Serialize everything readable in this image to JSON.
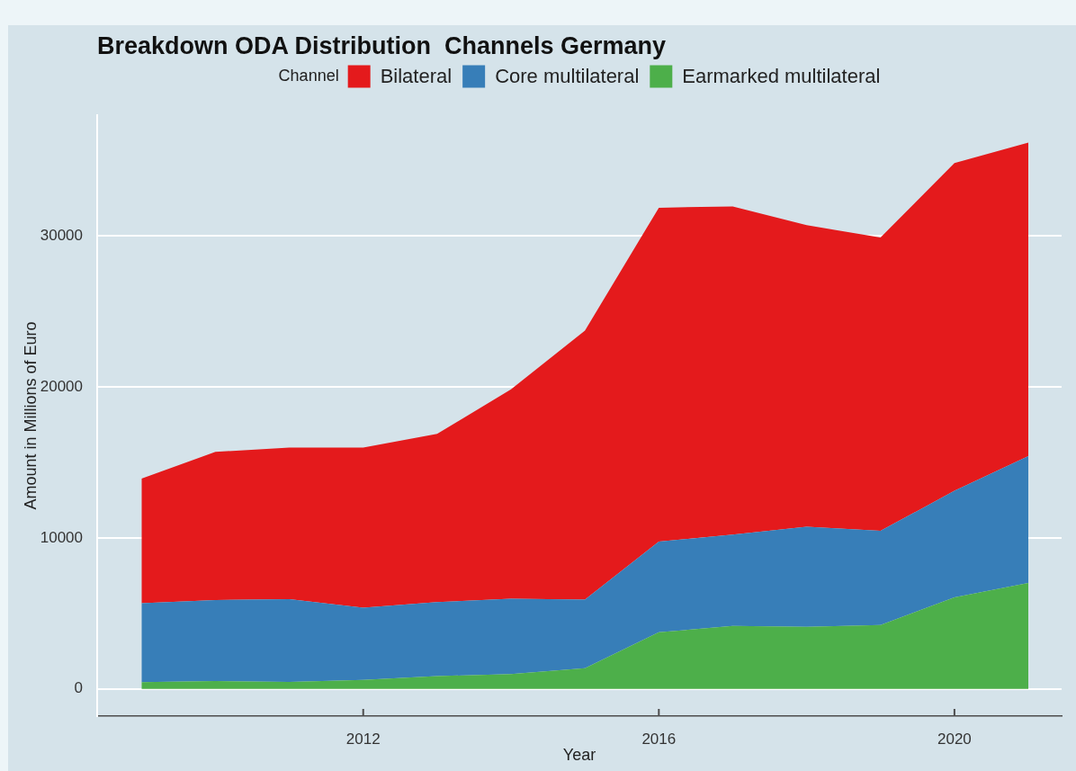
{
  "chart_data": {
    "type": "area",
    "title": "Breakdown ODA Distribution  Channels Germany",
    "xlabel": "Year",
    "ylabel": "Amount in Millions of Euro",
    "legend_title": "Channel",
    "x": [
      2009,
      2010,
      2011,
      2012,
      2013,
      2014,
      2015,
      2016,
      2017,
      2018,
      2019,
      2020,
      2021
    ],
    "series": [
      {
        "name": "Earmarked multilateral",
        "color": "#4daf4a",
        "values": [
          450,
          520,
          460,
          600,
          850,
          990,
          1370,
          3750,
          4170,
          4110,
          4240,
          6070,
          7020
        ]
      },
      {
        "name": "Core multilateral",
        "color": "#377eb8",
        "values": [
          5220,
          5370,
          5490,
          4780,
          4900,
          4980,
          4550,
          6010,
          6050,
          6630,
          6230,
          7050,
          8400
        ]
      },
      {
        "name": "Bilateral",
        "color": "#e41a1c",
        "values": [
          8260,
          9810,
          10040,
          10600,
          11140,
          13880,
          17810,
          22110,
          21740,
          19970,
          19430,
          21700,
          20770
        ]
      }
    ],
    "stacked": true,
    "xlim": [
      2008.4,
      2021.45
    ],
    "ylim": [
      -1800,
      38000
    ],
    "xticks": [
      2012,
      2016,
      2020
    ],
    "yticks": [
      0,
      10000,
      20000,
      30000
    ],
    "grid": "y",
    "legend": "top"
  }
}
